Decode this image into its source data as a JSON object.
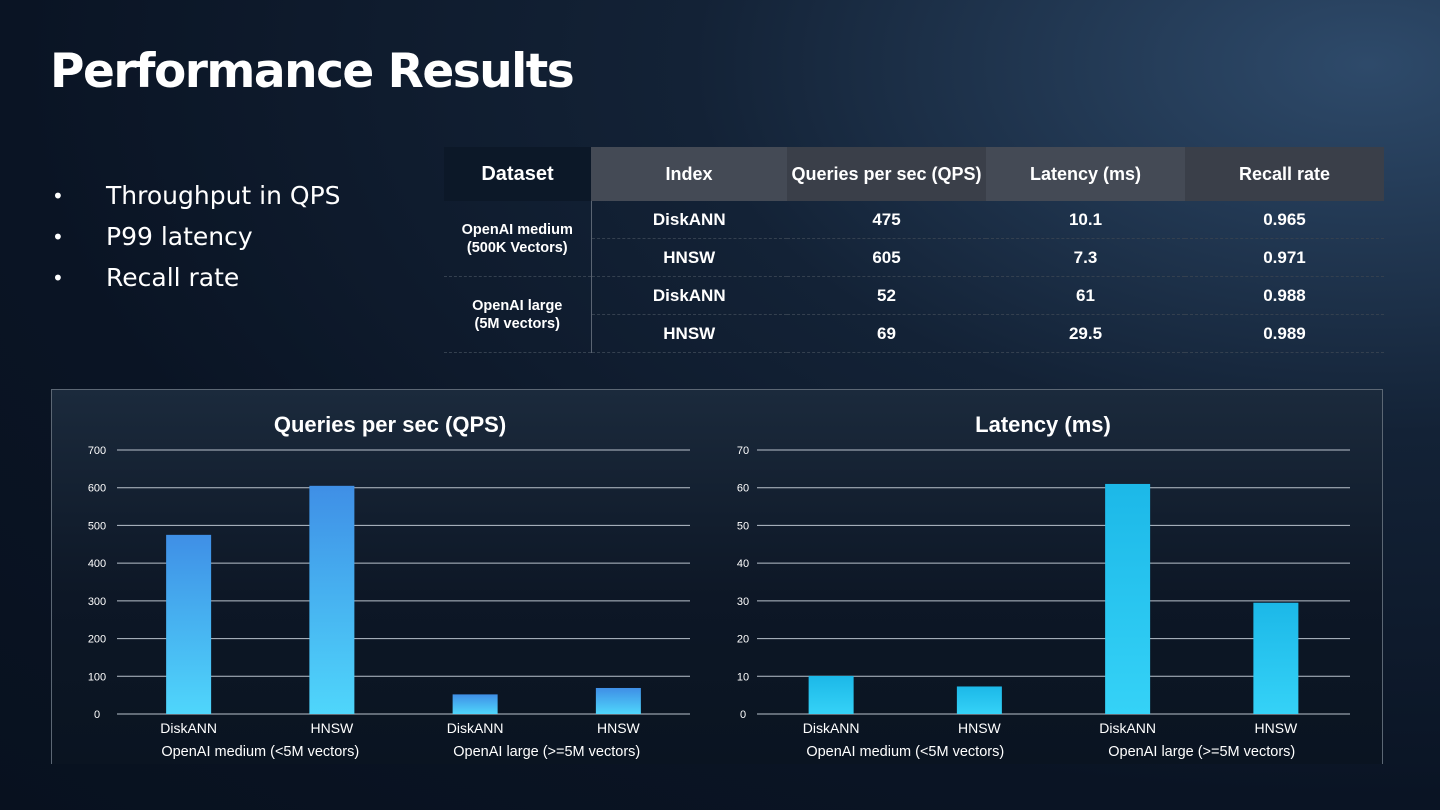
{
  "title": "Performance Results",
  "bullets": [
    "Throughput in QPS",
    "P99 latency",
    "Recall rate"
  ],
  "table": {
    "headers": [
      "Dataset",
      "Index",
      "Queries per sec (QPS)",
      "Latency (ms)",
      "Recall rate"
    ],
    "groups": [
      {
        "dataset": [
          "OpenAI medium",
          "(500K Vectors)"
        ],
        "rows": [
          [
            "DiskANN",
            "475",
            "10.1",
            "0.965"
          ],
          [
            "HNSW",
            "605",
            "7.3",
            "0.971"
          ]
        ]
      },
      {
        "dataset": [
          "OpenAI large",
          "(5M vectors)"
        ],
        "rows": [
          [
            "DiskANN",
            "52",
            "61",
            "0.988"
          ],
          [
            "HNSW",
            "69",
            "29.5",
            "0.989"
          ]
        ]
      }
    ]
  },
  "chart_data": [
    {
      "type": "bar",
      "title": "Queries per sec (QPS)",
      "categories": [
        "DiskANN",
        "HNSW",
        "DiskANN",
        "HNSW"
      ],
      "groups": [
        "OpenAI medium (<5M vectors)",
        "OpenAI large (>=5M vectors)"
      ],
      "values": [
        475,
        605,
        52,
        69
      ],
      "ylim": [
        0,
        700
      ],
      "yticks": [
        0,
        100,
        200,
        300,
        400,
        500,
        600,
        700
      ],
      "grid": true,
      "color": "#3f8fe6"
    },
    {
      "type": "bar",
      "title": "Latency (ms)",
      "categories": [
        "DiskANN",
        "HNSW",
        "DiskANN",
        "HNSW"
      ],
      "groups": [
        "OpenAI medium (<5M vectors)",
        "OpenAI large (>=5M vectors)"
      ],
      "values": [
        10.1,
        7.3,
        61,
        29.5
      ],
      "ylim": [
        0,
        70
      ],
      "yticks": [
        0,
        10,
        20,
        30,
        40,
        50,
        60,
        70
      ],
      "grid": true,
      "color": "#1cb8e8"
    }
  ]
}
